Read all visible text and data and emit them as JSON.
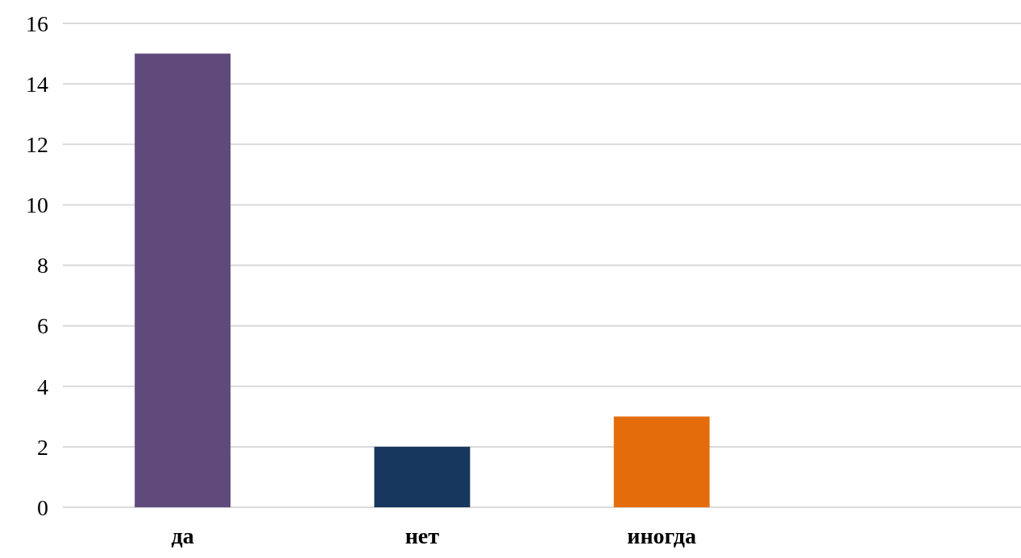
{
  "chart_data": {
    "type": "bar",
    "categories": [
      "да",
      "нет",
      "иногда",
      null
    ],
    "values": [
      15,
      2,
      3,
      null
    ],
    "colors": [
      "#604a7b",
      "#17375e",
      "#e46c0a",
      null
    ],
    "ylim": [
      0,
      16
    ],
    "yticks": [
      0,
      2,
      4,
      6,
      8,
      10,
      12,
      14,
      16
    ],
    "grid": "y"
  }
}
